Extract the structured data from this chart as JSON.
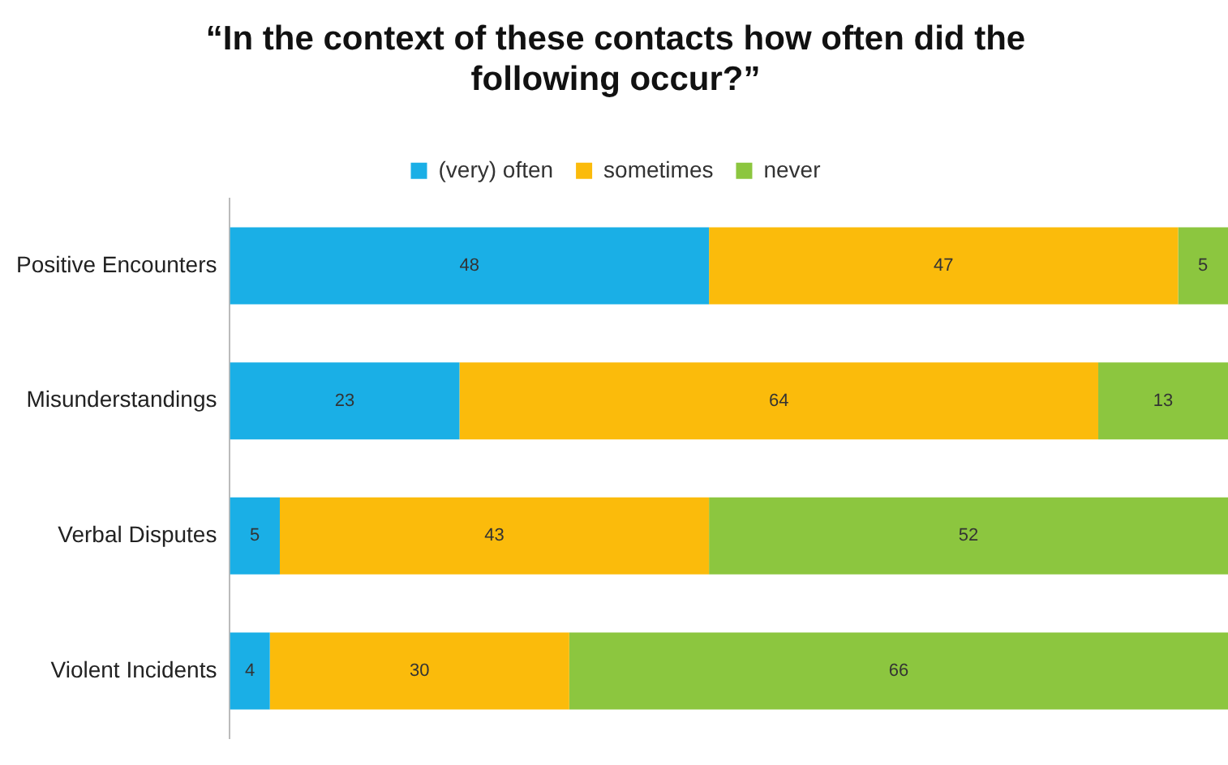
{
  "chart_data": {
    "type": "bar",
    "orientation": "horizontal",
    "stacked": true,
    "title": "“In the context of these contacts how often did the following occur?”",
    "categories": [
      "Positive Encounters",
      "Misunderstandings",
      "Verbal Disputes",
      "Violent Incidents"
    ],
    "series": [
      {
        "name": "(very) often",
        "color": "#1aafe6",
        "values": [
          48,
          23,
          5,
          4
        ]
      },
      {
        "name": "sometimes",
        "color": "#fbbb0b",
        "values": [
          47,
          64,
          43,
          30
        ]
      },
      {
        "name": "never",
        "color": "#8cc63f",
        "values": [
          5,
          13,
          52,
          66
        ]
      }
    ],
    "xlim": [
      0,
      100
    ],
    "tick_labels": "y",
    "data_labels": true,
    "legend": "top",
    "grid": false
  }
}
